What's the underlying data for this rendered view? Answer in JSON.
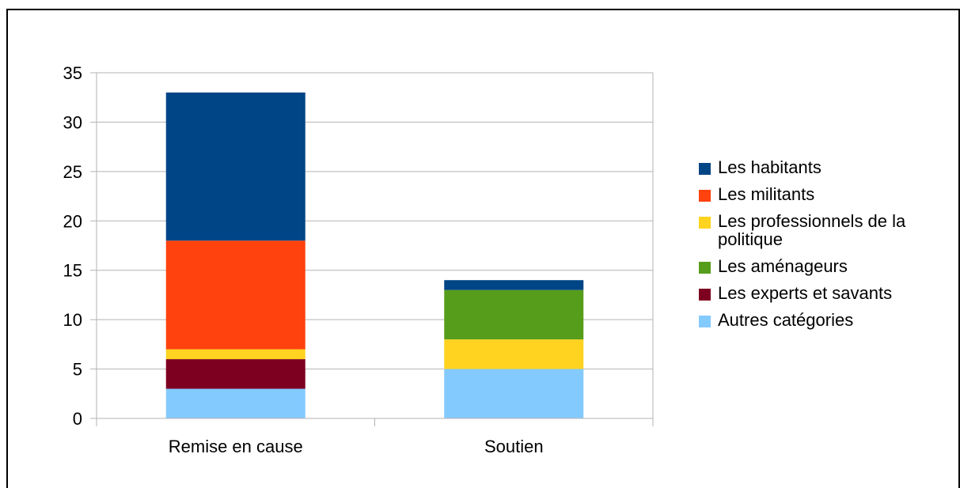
{
  "chart_data": {
    "type": "bar",
    "stacked": true,
    "categories": [
      "Remise en cause",
      "Soutien"
    ],
    "series": [
      {
        "name": "Autres catégories",
        "color": "#83CAFF",
        "values": [
          3,
          5
        ]
      },
      {
        "name": "Les experts et savants",
        "color": "#7E0021",
        "values": [
          3,
          0
        ]
      },
      {
        "name": "Les professionnels de la politique",
        "color": "#FFD320",
        "values": [
          1,
          3
        ]
      },
      {
        "name": "Les aménageurs",
        "color": "#579D1C",
        "values": [
          0,
          5
        ]
      },
      {
        "name": "Les militants",
        "color": "#FF420E",
        "values": [
          11,
          0
        ]
      },
      {
        "name": "Les habitants",
        "color": "#004586",
        "values": [
          15,
          1
        ]
      }
    ],
    "legend_order": [
      "Les habitants",
      "Les militants",
      "Les professionnels de la politique",
      "Les aménageurs",
      "Les experts et savants",
      "Autres catégories"
    ],
    "ylim": [
      0,
      35
    ],
    "yticks": [
      0,
      5,
      10,
      15,
      20,
      25,
      30,
      35
    ],
    "title": "",
    "xlabel": "",
    "ylabel": "",
    "grid": true,
    "legend_position": "right"
  }
}
